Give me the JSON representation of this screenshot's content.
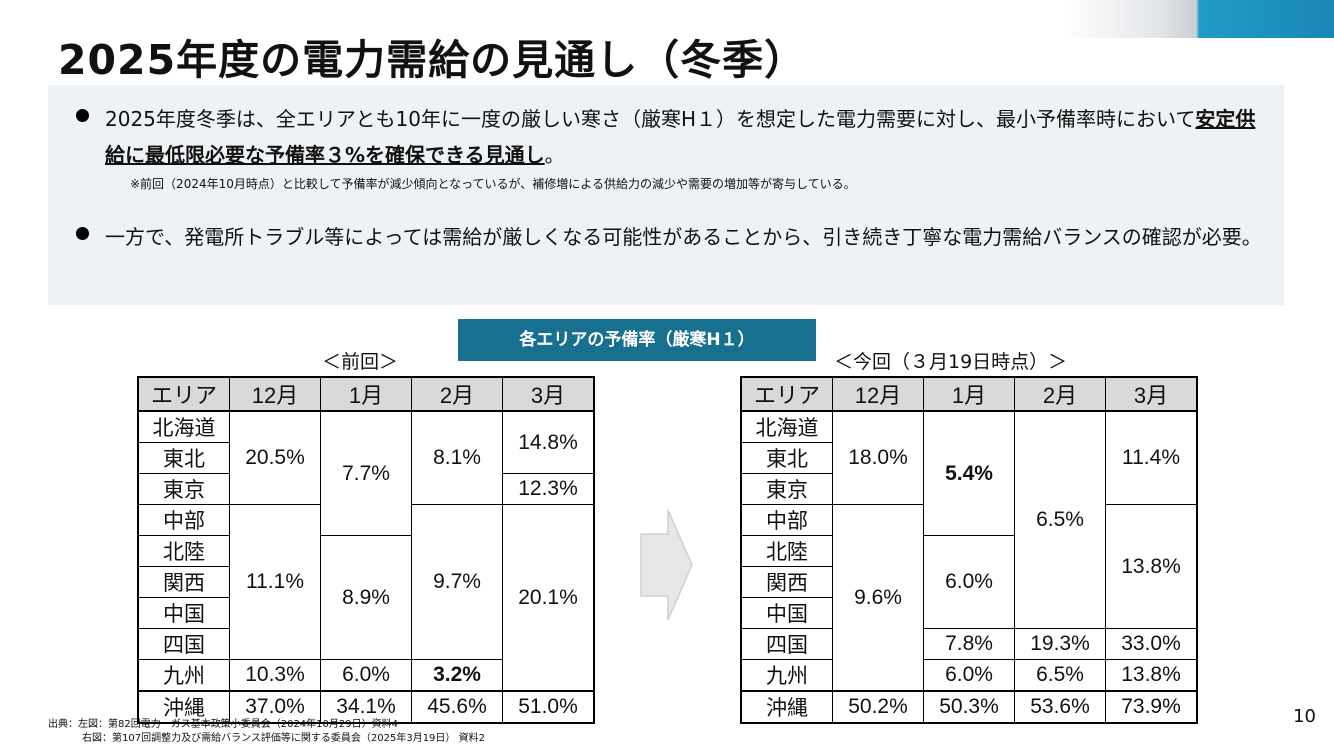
{
  "title": "2025年度の電力需給の見通し（冬季）",
  "summary": {
    "bullet1_pre": "2025年度冬季は、全エリアとも10年に一度の厳しい寒さ（厳寒H１）を想定した電力需要に対し、最小予備率時において",
    "bullet1_bold": "安定供給に最低限必要な予備率３%を確保できる見通し",
    "bullet1_post": "。",
    "note": "※前回（2024年10月時点）と比較して予備率が減少傾向となっているが、補修増による供給力の減少や需要の増加等が寄与している。",
    "bullet2": "一方で、発電所トラブル等によっては需給が厳しくなる可能性があることから、引き続き丁寧な電力需給バランスの確認が必要。"
  },
  "banner": "各エリアの予備率（厳寒H１）",
  "left_caption": "＜前回＞",
  "right_caption": "＜今回（３月19日時点）＞",
  "headers": [
    "エリア",
    "12月",
    "1月",
    "2月",
    "3月"
  ],
  "areas": [
    "北海道",
    "東北",
    "東京",
    "中部",
    "北陸",
    "関西",
    "中国",
    "四国",
    "九州",
    "沖縄"
  ],
  "left": {
    "dec_a": "20.5%",
    "dec_b": "11.1%",
    "dec_kyushu": "10.3%",
    "dec_okinawa": "37.0%",
    "jan_a": "7.7%",
    "jan_b": "8.9%",
    "jan_kyushu": "6.0%",
    "jan_okinawa": "34.1%",
    "feb_a": "8.1%",
    "feb_b": "9.7%",
    "feb_kyushu": "3.2%",
    "feb_okinawa": "45.6%",
    "mar_a": "14.8%",
    "mar_tokyo": "12.3%",
    "mar_b": "20.1%",
    "mar_okinawa": "51.0%"
  },
  "right": {
    "dec_a": "18.0%",
    "dec_b": "9.6%",
    "dec_okinawa": "50.2%",
    "jan_a": "5.4%",
    "jan_b": "6.0%",
    "jan_shikoku": "7.8%",
    "jan_kyushu": "6.0%",
    "jan_okinawa": "50.3%",
    "feb_a": "6.5%",
    "feb_shikoku": "19.3%",
    "feb_kyushu": "6.5%",
    "feb_okinawa": "53.6%",
    "mar_a": "11.4%",
    "mar_b": "13.8%",
    "mar_shikoku": "33.0%",
    "mar_kyushu": "13.8%",
    "mar_okinawa": "73.9%"
  },
  "sources": {
    "line1": "出典：左図：第82回電力・ガス基本政策小委員会（2024年10月29日）資料4",
    "line2": "右図：第107回調整力及び需給バランス評価等に関する委員会（2025年3月19日） 資料2"
  },
  "page_number": "10"
}
